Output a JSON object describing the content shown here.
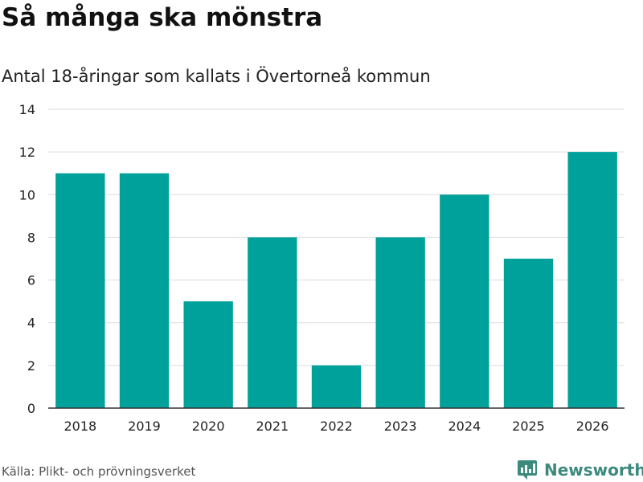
{
  "title": "Så många ska mönstra",
  "subtitle": "Antal 18-åringar som kallats i Övertorneå kommun",
  "source": "Källa: Plikt- och prövningsverket",
  "brand": {
    "name": "Newsworthy",
    "icon": "newsworthy-logo-icon",
    "color": "#3b8a7d"
  },
  "colors": {
    "bar": "#00a19a",
    "grid": "#dddddd",
    "axis": "#333333"
  },
  "chart_data": {
    "type": "bar",
    "title": "Så många ska mönstra",
    "subtitle": "Antal 18-åringar som kallats i Övertorneå kommun",
    "xlabel": "",
    "ylabel": "",
    "categories": [
      "2018",
      "2019",
      "2020",
      "2021",
      "2022",
      "2023",
      "2024",
      "2025",
      "2026"
    ],
    "values": [
      11,
      11,
      5,
      8,
      2,
      8,
      10,
      7,
      12
    ],
    "ylim": [
      0,
      14
    ],
    "yticks": [
      0,
      2,
      4,
      6,
      8,
      10,
      12,
      14
    ],
    "grid": true,
    "legend": "none"
  }
}
